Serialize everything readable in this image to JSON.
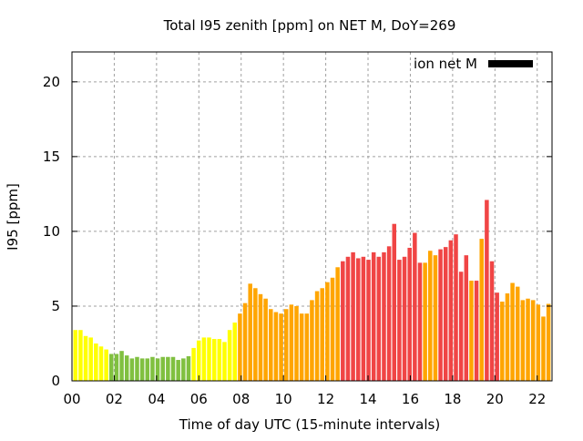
{
  "chart_data": {
    "type": "bar",
    "title": "Total I95 zenith [ppm] on NET M, DoY=269",
    "xlabel": "Time of day UTC (15-minute intervals)",
    "ylabel": "I95 [ppm]",
    "xlim": [
      0,
      22.7
    ],
    "ylim": [
      0,
      22
    ],
    "xticks": [
      "00",
      "02",
      "04",
      "06",
      "08",
      "10",
      "12",
      "14",
      "16",
      "18",
      "20",
      "22"
    ],
    "yticks": [
      "0",
      "5",
      "10",
      "15",
      "20"
    ],
    "grid": true,
    "legend": {
      "label": "ion net M",
      "placement": "top-right"
    },
    "colors": {
      "y": "#ffff00",
      "g": "#80c040",
      "o": "#ffa500",
      "r": "#f04545"
    },
    "values": [
      3.4,
      3.4,
      3.0,
      2.9,
      2.5,
      2.3,
      2.1,
      1.8,
      1.8,
      2.0,
      1.7,
      1.5,
      1.6,
      1.5,
      1.5,
      1.6,
      1.5,
      1.6,
      1.6,
      1.6,
      1.4,
      1.5,
      1.65,
      2.2,
      2.7,
      2.9,
      2.9,
      2.8,
      2.8,
      2.6,
      3.4,
      3.9,
      4.5,
      5.2,
      6.5,
      6.2,
      5.8,
      5.5,
      4.8,
      4.6,
      4.5,
      4.8,
      5.1,
      5.0,
      4.5,
      4.5,
      5.4,
      6.0,
      6.2,
      6.6,
      6.9,
      7.6,
      8.0,
      8.3,
      8.6,
      8.2,
      8.3,
      8.1,
      8.6,
      8.3,
      8.6,
      9.0,
      10.5,
      8.1,
      8.3,
      8.9,
      9.9,
      7.9,
      7.9,
      8.7,
      8.4,
      8.8,
      8.95,
      9.4,
      9.8,
      7.3,
      8.4,
      6.7,
      6.7,
      9.5,
      12.1,
      8.0,
      5.9,
      5.3,
      5.85,
      6.55,
      6.3,
      5.4,
      5.5,
      5.4,
      5.1,
      4.3,
      5.15
    ],
    "bar_colors": "yyyyyyyggggggggggggggggyyyyyyyyyoooooooooooooooooooorrrrrrrrrrrrrrrrooorrrrrrororrrooooooooooooo"
  }
}
